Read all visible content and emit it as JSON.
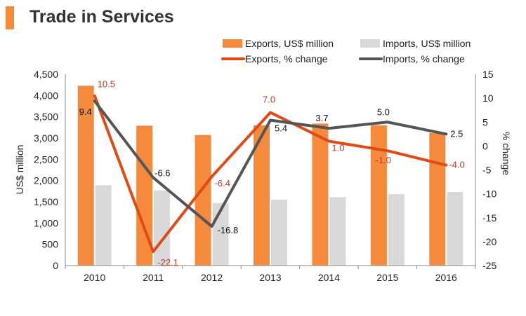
{
  "header": {
    "title": "Trade in Services"
  },
  "colors": {
    "exports_bar": "#f5893c",
    "imports_bar": "#d9d9d9",
    "exports_line": "#e04a16",
    "imports_line": "#555555",
    "exports_label": "#c0392b",
    "imports_label": "#111111",
    "title_accent": "#f5893c"
  },
  "chart_data": {
    "type": "bar",
    "categories": [
      "2010",
      "2011",
      "2012",
      "2013",
      "2014",
      "2015",
      "2016"
    ],
    "series": [
      {
        "name": "Exports, US$ million",
        "type": "bar",
        "axis": "left",
        "values": [
          4230,
          3290,
          3070,
          3300,
          3340,
          3300,
          3120
        ]
      },
      {
        "name": "Imports, US$ million",
        "type": "bar",
        "axis": "left",
        "values": [
          1890,
          1770,
          1470,
          1550,
          1610,
          1680,
          1730
        ]
      },
      {
        "name": "Exports, % change",
        "type": "line",
        "axis": "right",
        "values": [
          10.5,
          -22.1,
          -6.4,
          7.0,
          1.0,
          -1.0,
          -4.0
        ],
        "labels": [
          "10.5",
          "-22.1",
          "-6.4",
          "7.0",
          "1.0",
          "-1.0",
          "-4.0"
        ]
      },
      {
        "name": "Imports, % change",
        "type": "line",
        "axis": "right",
        "values": [
          9.4,
          -6.6,
          -16.8,
          5.4,
          3.7,
          5.0,
          2.5
        ],
        "labels": [
          "9.4",
          "-6.6",
          "-16.8",
          "5.4",
          "3.7",
          "5.0",
          "2.5"
        ]
      }
    ],
    "ylabel": "US$ million",
    "ylabel_right": "% change",
    "ylim": [
      0,
      4500
    ],
    "ylim_right": [
      -25,
      15
    ],
    "yticks": [
      "0",
      "500",
      "1,000",
      "1,500",
      "2,000",
      "2,500",
      "3,000",
      "3,500",
      "4,000",
      "4,500"
    ],
    "yticks_right": [
      "-25",
      "-20",
      "-15",
      "-10",
      "-5",
      "0",
      "5",
      "10",
      "15"
    ],
    "grid": false,
    "legend_position": "top-right"
  }
}
